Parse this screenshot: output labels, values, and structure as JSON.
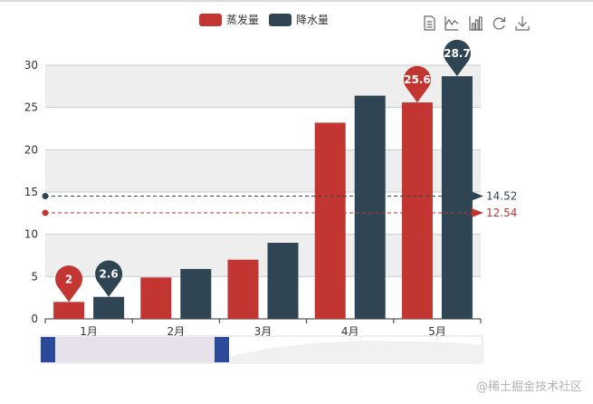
{
  "chart_data": {
    "type": "bar",
    "categories": [
      "1月",
      "2月",
      "3月",
      "4月",
      "5月"
    ],
    "series": [
      {
        "name": "蒸发量",
        "color": "#c23531",
        "values": [
          2,
          4.9,
          7,
          23.2,
          25.6
        ],
        "markPoints": [
          {
            "type": "min",
            "category": "1月",
            "value": 2,
            "label": "2"
          },
          {
            "type": "max",
            "category": "5月",
            "value": 25.6,
            "label": "25.6"
          }
        ],
        "markLine": {
          "type": "average",
          "value": 12.54,
          "label": "12.54"
        }
      },
      {
        "name": "降水量",
        "color": "#2f4554",
        "values": [
          2.6,
          5.9,
          9,
          26.4,
          28.7
        ],
        "markPoints": [
          {
            "type": "min",
            "category": "1月",
            "value": 2.6,
            "label": "2.6"
          },
          {
            "type": "max",
            "category": "5月",
            "value": 28.7,
            "label": "28.7"
          }
        ],
        "markLine": {
          "type": "average",
          "value": 14.52,
          "label": "14.52"
        }
      }
    ],
    "ylim": [
      0,
      30
    ],
    "yticks": [
      "0",
      "5",
      "10",
      "15",
      "20",
      "25",
      "30"
    ],
    "grid": true,
    "split_area": true,
    "legend_position": "top-center",
    "toolbox": [
      "data-view-icon",
      "line-chart-icon",
      "bar-chart-icon",
      "restore-icon",
      "save-image-icon"
    ],
    "data_zoom": {
      "start": 0,
      "end": 40
    }
  },
  "watermark": "@稀土掘金技术社区"
}
